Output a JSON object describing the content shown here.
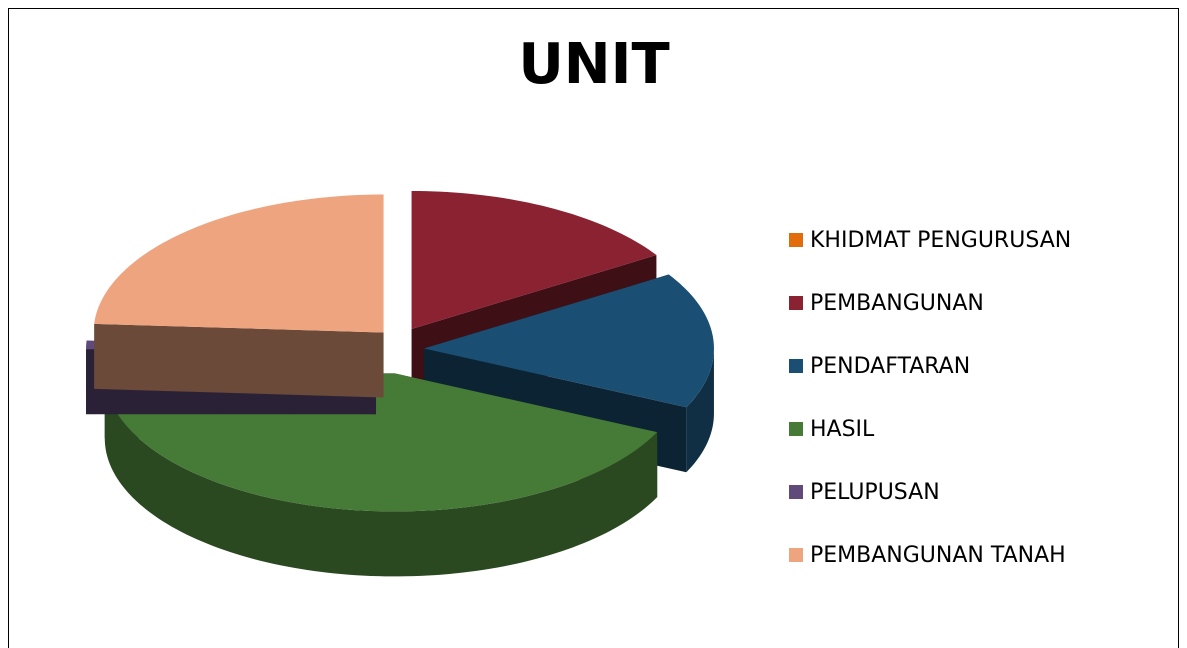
{
  "chart_data": {
    "type": "pie",
    "title": "UNIT",
    "categories": [
      "KHIDMAT PENGURUSAN",
      "PEMBANGUNAN",
      "PENDAFTARAN",
      "HASIL",
      "PELUPUSAN",
      "PEMBANGUNAN TANAH"
    ],
    "values": [
      0,
      16,
      16,
      43,
      1,
      24
    ],
    "colors": [
      "#e36c0a",
      "#8b2231",
      "#1a4e72",
      "#467a37",
      "#5f4a7a",
      "#eea47f"
    ],
    "legend": "right"
  }
}
